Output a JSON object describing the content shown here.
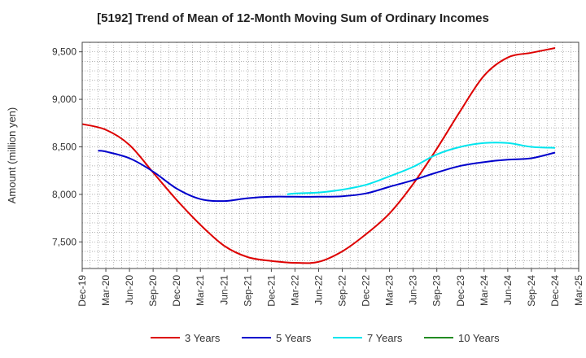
{
  "chart_data": {
    "type": "line",
    "title": "[5192]  Trend of Mean of 12-Month Moving Sum of Ordinary Incomes",
    "xlabel": "",
    "ylabel": "Amount (million yen)",
    "ylim": [
      7220,
      9600
    ],
    "yticks": [
      7500,
      8000,
      8500,
      9000,
      9500
    ],
    "ytick_labels": [
      "7,500",
      "8,000",
      "8,500",
      "9,000",
      "9,500"
    ],
    "x_ticks": [
      "Dec-19",
      "Mar-20",
      "Jun-20",
      "Sep-20",
      "Dec-20",
      "Mar-21",
      "Jun-21",
      "Sep-21",
      "Dec-21",
      "Mar-22",
      "Jun-22",
      "Sep-22",
      "Dec-22",
      "Mar-23",
      "Jun-23",
      "Sep-23",
      "Dec-23",
      "Mar-24",
      "Jun-24",
      "Sep-24",
      "Dec-24",
      "Mar-25"
    ],
    "grid": true,
    "legend_position": "bottom",
    "series": [
      {
        "name": "3 Years",
        "color": "#dd0000",
        "points": [
          [
            0,
            8740
          ],
          [
            1,
            8680
          ],
          [
            2,
            8520
          ],
          [
            3,
            8230
          ],
          [
            4,
            7940
          ],
          [
            5,
            7680
          ],
          [
            6,
            7460
          ],
          [
            7,
            7340
          ],
          [
            8,
            7300
          ],
          [
            9,
            7280
          ],
          [
            10,
            7290
          ],
          [
            11,
            7400
          ],
          [
            12,
            7580
          ],
          [
            13,
            7800
          ],
          [
            14,
            8110
          ],
          [
            15,
            8480
          ],
          [
            16,
            8880
          ],
          [
            17,
            9250
          ],
          [
            18,
            9440
          ],
          [
            19,
            9490
          ],
          [
            20,
            9540
          ]
        ]
      },
      {
        "name": "5 Years",
        "color": "#0000cc",
        "points": [
          [
            0.67,
            8460
          ],
          [
            1,
            8450
          ],
          [
            2,
            8380
          ],
          [
            3,
            8240
          ],
          [
            4,
            8060
          ],
          [
            5,
            7950
          ],
          [
            6,
            7930
          ],
          [
            7,
            7960
          ],
          [
            8,
            7975
          ],
          [
            9,
            7975
          ],
          [
            10,
            7975
          ],
          [
            11,
            7980
          ],
          [
            12,
            8010
          ],
          [
            13,
            8080
          ],
          [
            14,
            8150
          ],
          [
            15,
            8230
          ],
          [
            16,
            8300
          ],
          [
            17,
            8340
          ],
          [
            18,
            8365
          ],
          [
            19,
            8380
          ],
          [
            20,
            8440
          ]
        ]
      },
      {
        "name": "7 Years",
        "color": "#00e5ee",
        "points": [
          [
            8.67,
            8000
          ],
          [
            9,
            8010
          ],
          [
            10,
            8020
          ],
          [
            11,
            8050
          ],
          [
            12,
            8100
          ],
          [
            13,
            8190
          ],
          [
            14,
            8290
          ],
          [
            15,
            8420
          ],
          [
            16,
            8500
          ],
          [
            17,
            8540
          ],
          [
            18,
            8540
          ],
          [
            19,
            8500
          ],
          [
            20,
            8490
          ]
        ]
      },
      {
        "name": "10 Years",
        "color": "#228b22",
        "points": []
      }
    ]
  }
}
